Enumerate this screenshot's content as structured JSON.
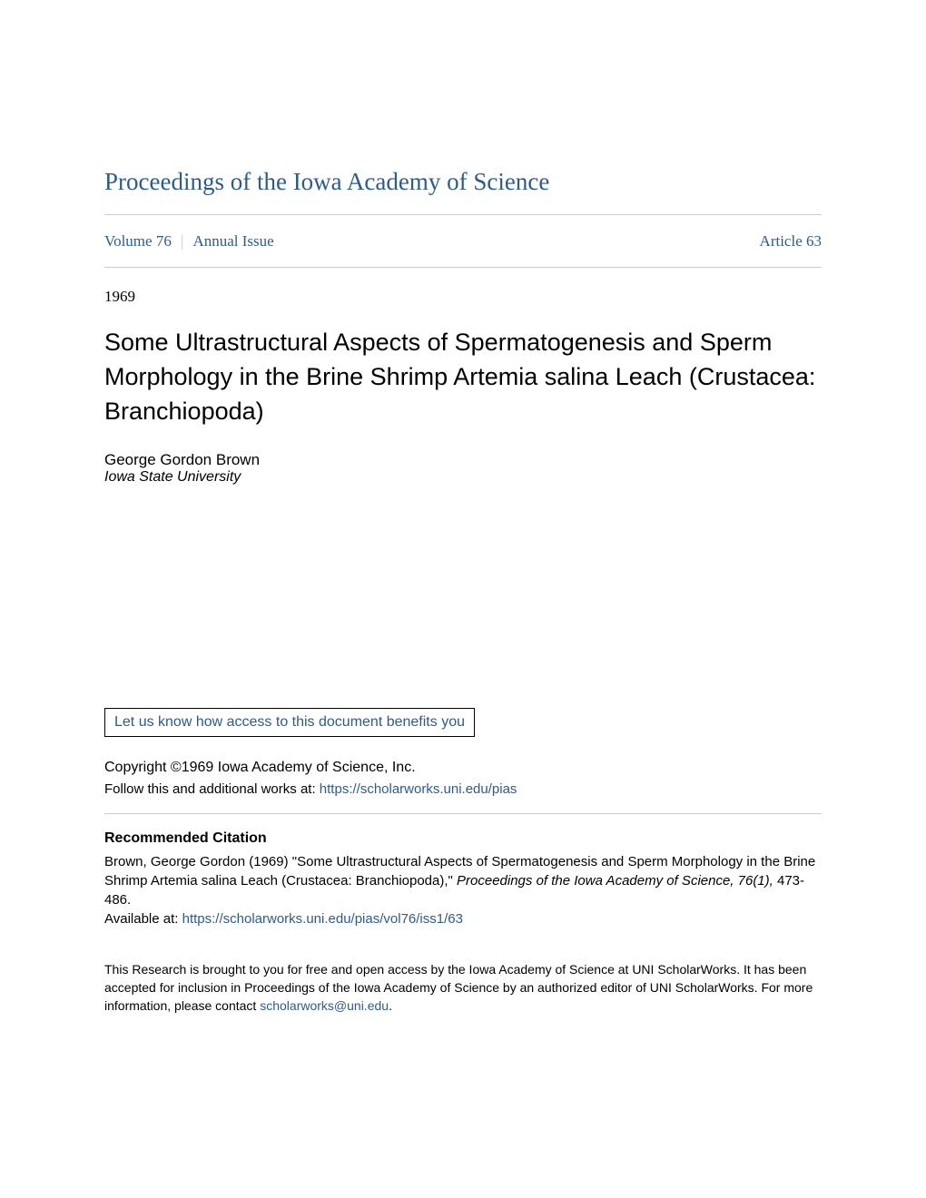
{
  "journal": {
    "title": "Proceedings of the Iowa Academy of Science"
  },
  "meta": {
    "volume_label": "Volume 76",
    "issue_label": "Annual Issue",
    "article_label": "Article 63"
  },
  "year": "1969",
  "article": {
    "title": "Some Ultrastructural Aspects of Spermatogenesis and Sperm Morphology in the Brine Shrimp Artemia salina Leach (Crustacea: Branchiopoda)"
  },
  "author": {
    "name": "George Gordon Brown",
    "affiliation": "Iowa State University"
  },
  "benefits_link": "Let us know how access to this document benefits you",
  "copyright": "Copyright ©1969 Iowa Academy of Science, Inc.",
  "follow": {
    "prefix": "Follow this and additional works at: ",
    "url": "https://scholarworks.uni.edu/pias"
  },
  "citation": {
    "heading": "Recommended Citation",
    "text_part1": "Brown, George Gordon (1969) \"Some Ultrastructural Aspects of Spermatogenesis and Sperm Morphology in the Brine Shrimp Artemia salina Leach (Crustacea: Branchiopoda),\" ",
    "text_italic": "Proceedings of the Iowa Academy of Science, 76(1),",
    "text_part2": " 473-486.",
    "available_prefix": "Available at: ",
    "available_url": "https://scholarworks.uni.edu/pias/vol76/iss1/63"
  },
  "footer": {
    "text_part1": "This Research is brought to you for free and open access by the Iowa Academy of Science at UNI ScholarWorks. It has been accepted for inclusion in Proceedings of the Iowa Academy of Science by an authorized editor of UNI ScholarWorks. For more information, please contact ",
    "email": "scholarworks@uni.edu",
    "text_part2": "."
  },
  "colors": {
    "link": "#2e5c8a",
    "text": "#000000",
    "divider": "#cccccc",
    "background": "#ffffff"
  }
}
